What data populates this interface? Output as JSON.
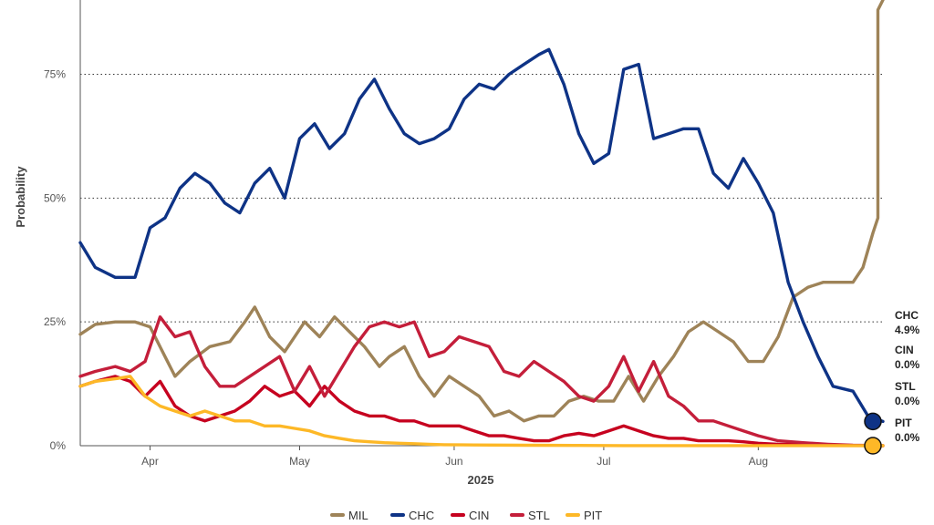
{
  "chart_data": {
    "type": "line",
    "title": "",
    "xlabel": "2025",
    "ylabel": "Probability",
    "ylim": [
      0,
      90
    ],
    "xlim": [
      "2025-03-18",
      "2025-08-26"
    ],
    "y_ticks": [
      {
        "value": 0,
        "label": "0%"
      },
      {
        "value": 25,
        "label": "25%"
      },
      {
        "value": 50,
        "label": "50%"
      },
      {
        "value": 75,
        "label": "75%"
      }
    ],
    "x_ticks": [
      {
        "value": "2025-04-01",
        "label": "Apr"
      },
      {
        "value": "2025-05-01",
        "label": "May"
      },
      {
        "value": "2025-06-01",
        "label": "Jun"
      },
      {
        "value": "2025-07-01",
        "label": "Jul"
      },
      {
        "value": "2025-08-01",
        "label": "Aug"
      }
    ],
    "grid": "horizontal-dotted",
    "legend_position": "bottom",
    "series": [
      {
        "name": "MIL",
        "color": "#9e8358",
        "width": 3.4,
        "points": [
          [
            "2025-03-18",
            22.5
          ],
          [
            "2025-03-21",
            24.5
          ],
          [
            "2025-03-25",
            25
          ],
          [
            "2025-03-29",
            25
          ],
          [
            "2025-04-01",
            24
          ],
          [
            "2025-04-04",
            18
          ],
          [
            "2025-04-06",
            14
          ],
          [
            "2025-04-09",
            17
          ],
          [
            "2025-04-13",
            20
          ],
          [
            "2025-04-17",
            21
          ],
          [
            "2025-04-20",
            25
          ],
          [
            "2025-04-22",
            28
          ],
          [
            "2025-04-25",
            22
          ],
          [
            "2025-04-28",
            19
          ],
          [
            "2025-05-02",
            25
          ],
          [
            "2025-05-05",
            22
          ],
          [
            "2025-05-08",
            26
          ],
          [
            "2025-05-10",
            24
          ],
          [
            "2025-05-14",
            20
          ],
          [
            "2025-05-17",
            16
          ],
          [
            "2025-05-19",
            18
          ],
          [
            "2025-05-22",
            20
          ],
          [
            "2025-05-25",
            14
          ],
          [
            "2025-05-28",
            10
          ],
          [
            "2025-05-31",
            14
          ],
          [
            "2025-06-03",
            12
          ],
          [
            "2025-06-06",
            10
          ],
          [
            "2025-06-09",
            6
          ],
          [
            "2025-06-12",
            7
          ],
          [
            "2025-06-15",
            5
          ],
          [
            "2025-06-18",
            6
          ],
          [
            "2025-06-21",
            6
          ],
          [
            "2025-06-24",
            9
          ],
          [
            "2025-06-27",
            10
          ],
          [
            "2025-06-30",
            9
          ],
          [
            "2025-07-03",
            9
          ],
          [
            "2025-07-06",
            14
          ],
          [
            "2025-07-09",
            9
          ],
          [
            "2025-07-12",
            14
          ],
          [
            "2025-07-15",
            18
          ],
          [
            "2025-07-18",
            23
          ],
          [
            "2025-07-21",
            25
          ],
          [
            "2025-07-24",
            23
          ],
          [
            "2025-07-27",
            21
          ],
          [
            "2025-07-30",
            17
          ],
          [
            "2025-08-02",
            17
          ],
          [
            "2025-08-05",
            22
          ],
          [
            "2025-08-08",
            30
          ],
          [
            "2025-08-11",
            32
          ],
          [
            "2025-08-14",
            33
          ],
          [
            "2025-08-17",
            33
          ],
          [
            "2025-08-20",
            33
          ],
          [
            "2025-08-22",
            36
          ],
          [
            "2025-08-24",
            43
          ],
          [
            "2025-08-25",
            46
          ],
          [
            "2025-08-25",
            88
          ],
          [
            "2025-08-26",
            90
          ]
        ]
      },
      {
        "name": "CHC",
        "color": "#0e3386",
        "width": 3.4,
        "points": [
          [
            "2025-03-18",
            41
          ],
          [
            "2025-03-21",
            36
          ],
          [
            "2025-03-25",
            34
          ],
          [
            "2025-03-29",
            34
          ],
          [
            "2025-04-01",
            44
          ],
          [
            "2025-04-04",
            46
          ],
          [
            "2025-04-07",
            52
          ],
          [
            "2025-04-10",
            55
          ],
          [
            "2025-04-13",
            53
          ],
          [
            "2025-04-16",
            49
          ],
          [
            "2025-04-19",
            47
          ],
          [
            "2025-04-22",
            53
          ],
          [
            "2025-04-25",
            56
          ],
          [
            "2025-04-28",
            50
          ],
          [
            "2025-05-01",
            62
          ],
          [
            "2025-05-04",
            65
          ],
          [
            "2025-05-07",
            60
          ],
          [
            "2025-05-10",
            63
          ],
          [
            "2025-05-13",
            70
          ],
          [
            "2025-05-16",
            74
          ],
          [
            "2025-05-19",
            68
          ],
          [
            "2025-05-22",
            63
          ],
          [
            "2025-05-25",
            61
          ],
          [
            "2025-05-28",
            62
          ],
          [
            "2025-05-31",
            64
          ],
          [
            "2025-06-03",
            70
          ],
          [
            "2025-06-06",
            73
          ],
          [
            "2025-06-09",
            72
          ],
          [
            "2025-06-12",
            75
          ],
          [
            "2025-06-15",
            77
          ],
          [
            "2025-06-18",
            79
          ],
          [
            "2025-06-20",
            80
          ],
          [
            "2025-06-23",
            73
          ],
          [
            "2025-06-26",
            63
          ],
          [
            "2025-06-29",
            57
          ],
          [
            "2025-07-02",
            59
          ],
          [
            "2025-07-05",
            76
          ],
          [
            "2025-07-08",
            77
          ],
          [
            "2025-07-11",
            62
          ],
          [
            "2025-07-14",
            63
          ],
          [
            "2025-07-17",
            64
          ],
          [
            "2025-07-20",
            64
          ],
          [
            "2025-07-23",
            55
          ],
          [
            "2025-07-26",
            52
          ],
          [
            "2025-07-29",
            58
          ],
          [
            "2025-08-01",
            53
          ],
          [
            "2025-08-04",
            47
          ],
          [
            "2025-08-07",
            33
          ],
          [
            "2025-08-10",
            25
          ],
          [
            "2025-08-13",
            18
          ],
          [
            "2025-08-16",
            12
          ],
          [
            "2025-08-20",
            11
          ],
          [
            "2025-08-23",
            6
          ],
          [
            "2025-08-26",
            4.9
          ]
        ]
      },
      {
        "name": "CIN",
        "color": "#c6011f",
        "width": 3.4,
        "points": [
          [
            "2025-03-18",
            12
          ],
          [
            "2025-03-21",
            13
          ],
          [
            "2025-03-25",
            14
          ],
          [
            "2025-03-28",
            13
          ],
          [
            "2025-03-31",
            10
          ],
          [
            "2025-04-03",
            13
          ],
          [
            "2025-04-06",
            8
          ],
          [
            "2025-04-09",
            6
          ],
          [
            "2025-04-12",
            5
          ],
          [
            "2025-04-15",
            6
          ],
          [
            "2025-04-18",
            7
          ],
          [
            "2025-04-21",
            9
          ],
          [
            "2025-04-24",
            12
          ],
          [
            "2025-04-27",
            10
          ],
          [
            "2025-04-30",
            11
          ],
          [
            "2025-05-03",
            8
          ],
          [
            "2025-05-06",
            12
          ],
          [
            "2025-05-09",
            9
          ],
          [
            "2025-05-12",
            7
          ],
          [
            "2025-05-15",
            6
          ],
          [
            "2025-05-18",
            6
          ],
          [
            "2025-05-21",
            5
          ],
          [
            "2025-05-24",
            5
          ],
          [
            "2025-05-27",
            4
          ],
          [
            "2025-05-30",
            4
          ],
          [
            "2025-06-02",
            4
          ],
          [
            "2025-06-05",
            3
          ],
          [
            "2025-06-08",
            2
          ],
          [
            "2025-06-11",
            2
          ],
          [
            "2025-06-14",
            1.5
          ],
          [
            "2025-06-17",
            1
          ],
          [
            "2025-06-20",
            1
          ],
          [
            "2025-06-23",
            2
          ],
          [
            "2025-06-26",
            2.5
          ],
          [
            "2025-06-29",
            2
          ],
          [
            "2025-07-02",
            3
          ],
          [
            "2025-07-05",
            4
          ],
          [
            "2025-07-08",
            3
          ],
          [
            "2025-07-11",
            2
          ],
          [
            "2025-07-14",
            1.5
          ],
          [
            "2025-07-17",
            1.5
          ],
          [
            "2025-07-20",
            1
          ],
          [
            "2025-07-23",
            1
          ],
          [
            "2025-07-26",
            1
          ],
          [
            "2025-07-29",
            0.8
          ],
          [
            "2025-08-01",
            0.5
          ],
          [
            "2025-08-05",
            0.3
          ],
          [
            "2025-08-10",
            0.2
          ],
          [
            "2025-08-15",
            0.1
          ],
          [
            "2025-08-20",
            0.05
          ],
          [
            "2025-08-26",
            0
          ]
        ]
      },
      {
        "name": "STL",
        "color": "#c41e3a",
        "width": 3.4,
        "points": [
          [
            "2025-03-18",
            14
          ],
          [
            "2025-03-21",
            15
          ],
          [
            "2025-03-25",
            16
          ],
          [
            "2025-03-28",
            15
          ],
          [
            "2025-03-31",
            17
          ],
          [
            "2025-04-03",
            26
          ],
          [
            "2025-04-06",
            22
          ],
          [
            "2025-04-09",
            23
          ],
          [
            "2025-04-12",
            16
          ],
          [
            "2025-04-15",
            12
          ],
          [
            "2025-04-18",
            12
          ],
          [
            "2025-04-21",
            14
          ],
          [
            "2025-04-24",
            16
          ],
          [
            "2025-04-27",
            18
          ],
          [
            "2025-04-30",
            11
          ],
          [
            "2025-05-03",
            16
          ],
          [
            "2025-05-06",
            10
          ],
          [
            "2025-05-09",
            15
          ],
          [
            "2025-05-12",
            20
          ],
          [
            "2025-05-15",
            24
          ],
          [
            "2025-05-18",
            25
          ],
          [
            "2025-05-21",
            24
          ],
          [
            "2025-05-24",
            25
          ],
          [
            "2025-05-27",
            18
          ],
          [
            "2025-05-30",
            19
          ],
          [
            "2025-06-02",
            22
          ],
          [
            "2025-06-05",
            21
          ],
          [
            "2025-06-08",
            20
          ],
          [
            "2025-06-11",
            15
          ],
          [
            "2025-06-14",
            14
          ],
          [
            "2025-06-17",
            17
          ],
          [
            "2025-06-20",
            15
          ],
          [
            "2025-06-23",
            13
          ],
          [
            "2025-06-26",
            10
          ],
          [
            "2025-06-29",
            9
          ],
          [
            "2025-07-02",
            12
          ],
          [
            "2025-07-05",
            18
          ],
          [
            "2025-07-08",
            11
          ],
          [
            "2025-07-11",
            17
          ],
          [
            "2025-07-14",
            10
          ],
          [
            "2025-07-17",
            8
          ],
          [
            "2025-07-20",
            5
          ],
          [
            "2025-07-23",
            5
          ],
          [
            "2025-07-26",
            4
          ],
          [
            "2025-07-29",
            3
          ],
          [
            "2025-08-01",
            2
          ],
          [
            "2025-08-05",
            1
          ],
          [
            "2025-08-10",
            0.6
          ],
          [
            "2025-08-15",
            0.3
          ],
          [
            "2025-08-20",
            0.1
          ],
          [
            "2025-08-26",
            0
          ]
        ]
      },
      {
        "name": "PIT",
        "color": "#fdb827",
        "width": 3.4,
        "points": [
          [
            "2025-03-18",
            12
          ],
          [
            "2025-03-21",
            13
          ],
          [
            "2025-03-25",
            13.5
          ],
          [
            "2025-03-28",
            14
          ],
          [
            "2025-03-31",
            10
          ],
          [
            "2025-04-03",
            8
          ],
          [
            "2025-04-06",
            7
          ],
          [
            "2025-04-09",
            6
          ],
          [
            "2025-04-12",
            7
          ],
          [
            "2025-04-15",
            6
          ],
          [
            "2025-04-18",
            5
          ],
          [
            "2025-04-21",
            5
          ],
          [
            "2025-04-24",
            4
          ],
          [
            "2025-04-27",
            4
          ],
          [
            "2025-04-30",
            3.5
          ],
          [
            "2025-05-03",
            3
          ],
          [
            "2025-05-06",
            2
          ],
          [
            "2025-05-09",
            1.5
          ],
          [
            "2025-05-12",
            1
          ],
          [
            "2025-05-15",
            0.8
          ],
          [
            "2025-05-18",
            0.6
          ],
          [
            "2025-05-21",
            0.5
          ],
          [
            "2025-05-24",
            0.4
          ],
          [
            "2025-05-27",
            0.3
          ],
          [
            "2025-05-30",
            0.2
          ],
          [
            "2025-06-05",
            0.15
          ],
          [
            "2025-06-15",
            0.1
          ],
          [
            "2025-06-25",
            0.05
          ],
          [
            "2025-07-05",
            0.02
          ],
          [
            "2025-08-26",
            0
          ]
        ]
      }
    ],
    "end_labels": [
      {
        "team": "CHC",
        "value": "4.9%"
      },
      {
        "team": "CIN",
        "value": "0.0%"
      },
      {
        "team": "STL",
        "value": "0.0%"
      },
      {
        "team": "PIT",
        "value": "0.0%"
      }
    ],
    "end_markers": [
      {
        "series": "CHC",
        "value": 4.9,
        "color": "#0e3386"
      },
      {
        "series": "PIT",
        "value": 0,
        "color": "#fdb827"
      }
    ],
    "legend": [
      {
        "label": "MIL",
        "color": "#9e8358"
      },
      {
        "label": "CHC",
        "color": "#0e3386"
      },
      {
        "label": "CIN",
        "color": "#c6011f"
      },
      {
        "label": "STL",
        "color": "#c41e3a"
      },
      {
        "label": "PIT",
        "color": "#fdb827"
      }
    ]
  }
}
